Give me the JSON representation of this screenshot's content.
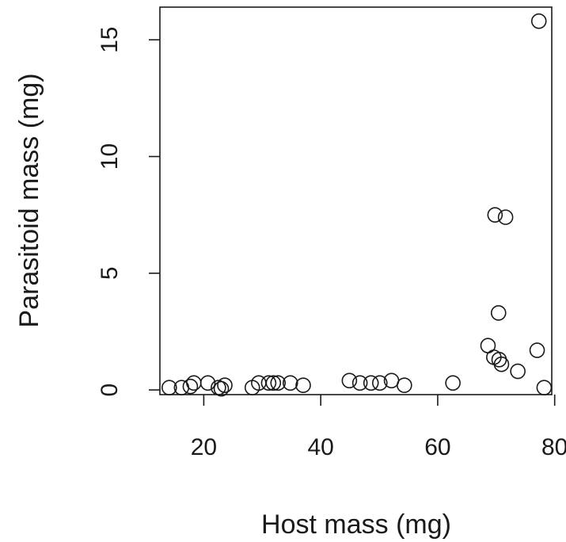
{
  "chart_data": {
    "type": "scatter",
    "xlabel": "Host mass (mg)",
    "ylabel": "Parasitoid mass (mg)",
    "xlim": [
      12.5,
      79.5
    ],
    "ylim": [
      -0.2,
      16.4
    ],
    "xticks": [
      20,
      40,
      60,
      80
    ],
    "yticks": [
      0,
      5,
      10,
      15
    ],
    "grid": false,
    "points": [
      {
        "x": 14.1,
        "y": 0.1
      },
      {
        "x": 16.2,
        "y": 0.1
      },
      {
        "x": 17.7,
        "y": 0.15
      },
      {
        "x": 18.3,
        "y": 0.3
      },
      {
        "x": 20.7,
        "y": 0.3
      },
      {
        "x": 22.5,
        "y": 0.1
      },
      {
        "x": 23.0,
        "y": 0.05
      },
      {
        "x": 23.6,
        "y": 0.2
      },
      {
        "x": 28.3,
        "y": 0.1
      },
      {
        "x": 29.4,
        "y": 0.3
      },
      {
        "x": 31.1,
        "y": 0.3
      },
      {
        "x": 31.9,
        "y": 0.3
      },
      {
        "x": 32.7,
        "y": 0.3
      },
      {
        "x": 34.8,
        "y": 0.3
      },
      {
        "x": 37.0,
        "y": 0.2
      },
      {
        "x": 44.9,
        "y": 0.4
      },
      {
        "x": 46.7,
        "y": 0.3
      },
      {
        "x": 48.6,
        "y": 0.3
      },
      {
        "x": 50.1,
        "y": 0.3
      },
      {
        "x": 52.1,
        "y": 0.4
      },
      {
        "x": 54.3,
        "y": 0.2
      },
      {
        "x": 62.6,
        "y": 0.3
      },
      {
        "x": 68.6,
        "y": 1.9
      },
      {
        "x": 69.6,
        "y": 1.4
      },
      {
        "x": 69.8,
        "y": 7.5
      },
      {
        "x": 70.4,
        "y": 3.3
      },
      {
        "x": 70.5,
        "y": 1.3
      },
      {
        "x": 70.9,
        "y": 1.1
      },
      {
        "x": 71.6,
        "y": 7.4
      },
      {
        "x": 73.7,
        "y": 0.8
      },
      {
        "x": 77.0,
        "y": 1.7
      },
      {
        "x": 77.3,
        "y": 15.8
      },
      {
        "x": 78.2,
        "y": 0.1
      }
    ]
  }
}
